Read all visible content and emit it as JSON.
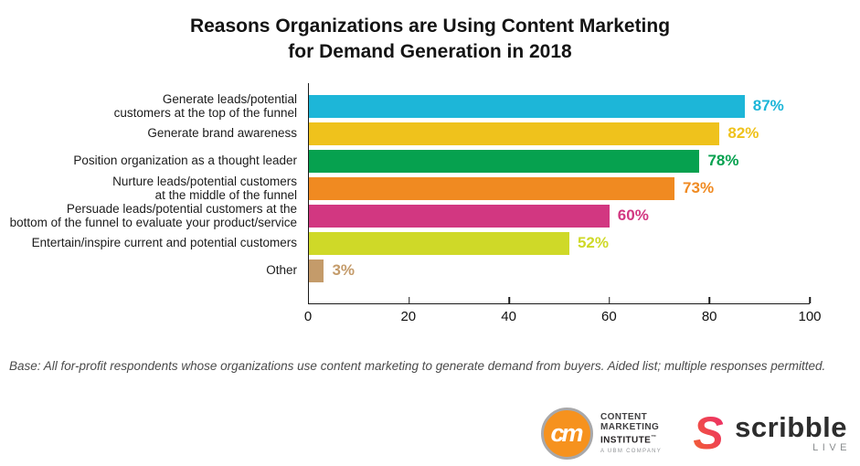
{
  "header": {
    "title_line1": "Reasons Organizations are Using Content Marketing",
    "title_line2": "for Demand Generation in 2018"
  },
  "chart_data": {
    "type": "bar",
    "orientation": "horizontal",
    "title": "Reasons Organizations are Using Content Marketing for Demand Generation in 2018",
    "categories": [
      "Generate leads/potential\ncustomers at the top of the funnel",
      "Generate brand awareness",
      "Position organization as a thought leader",
      "Nurture leads/potential customers\nat the middle of the funnel",
      "Persuade leads/potential customers at the\nbottom of the funnel to evaluate your product/service",
      "Entertain/inspire current and potential customers",
      "Other"
    ],
    "values": [
      87,
      82,
      78,
      73,
      60,
      52,
      3
    ],
    "value_labels": [
      "87%",
      "82%",
      "78%",
      "73%",
      "60%",
      "52%",
      "3%"
    ],
    "bar_colors": [
      "#1DB6D8",
      "#EFC21C",
      "#06A14F",
      "#F08A21",
      "#D23781",
      "#CFD928",
      "#C49B6A"
    ],
    "xlabel": "",
    "ylabel": "",
    "xlim": [
      0,
      100
    ],
    "x_ticks": [
      0,
      20,
      40,
      60,
      80,
      100
    ],
    "grid": false,
    "legend": false,
    "axis_color": "#1a1a1a"
  },
  "footnote": "Base: All for-profit respondents whose organizations use content marketing to generate demand from buyers. Aided list; multiple responses permitted.",
  "logos": {
    "cmi": {
      "monogram": "cm",
      "line1": "CONTENT",
      "line2": "MARKETING",
      "line3": "INSTITUTE",
      "trademark": "™",
      "tagline": "A UBM COMPANY",
      "circle_color": "#F6921E"
    },
    "scribble": {
      "mark": "S",
      "name": "scribble",
      "sub": "LIVE",
      "gradient_start": "#F26430",
      "gradient_end": "#EC2A6C"
    }
  }
}
